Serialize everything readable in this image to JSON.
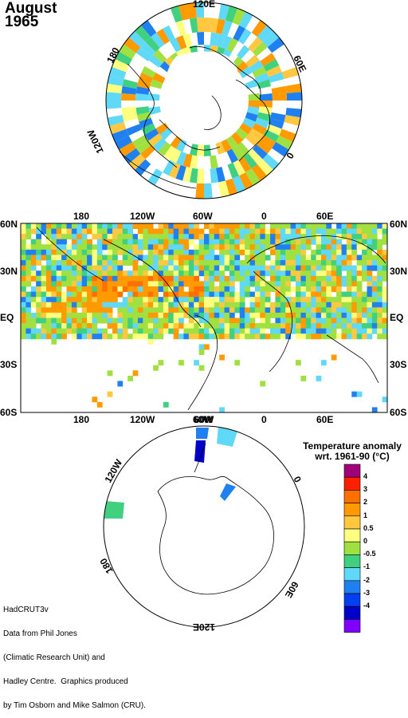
{
  "title": {
    "month": "August",
    "year": "1965"
  },
  "north_polar": {
    "labels": [
      "120E",
      "60E",
      "0",
      "120W",
      "180"
    ]
  },
  "mid_map": {
    "top_lon_labels": [
      "180",
      "120W",
      "60W",
      "0",
      "60E"
    ],
    "bottom_lon_labels": [
      "180",
      "120W",
      "60W",
      "0",
      "60E"
    ],
    "lat_labels": [
      "60N",
      "30N",
      "EQ",
      "30S",
      "60S"
    ]
  },
  "south_polar": {
    "labels": [
      "60W",
      "0",
      "60E",
      "120E",
      "180",
      "120W"
    ]
  },
  "legend": {
    "title_line1": "Temperature anomaly",
    "title_line2": "wrt. 1961-90  (°C)",
    "items": [
      {
        "label": "4",
        "color": "#a0007a"
      },
      {
        "label": "3",
        "color": "#ff2000"
      },
      {
        "label": "2",
        "color": "#ff7000"
      },
      {
        "label": "1",
        "color": "#ff9a00"
      },
      {
        "label": "0.5",
        "color": "#ffc840"
      },
      {
        "label": "0",
        "color": "#ffff80"
      },
      {
        "label": "-0.5",
        "color": "#a0e040"
      },
      {
        "label": "-1",
        "color": "#40d080"
      },
      {
        "label": "-2",
        "color": "#60d8f8"
      },
      {
        "label": "-3",
        "color": "#2080f0"
      },
      {
        "label": "-4",
        "color": "#0040f0"
      },
      {
        "label": "",
        "color": "#0000c8"
      },
      {
        "label": "",
        "color": "#8000ff"
      }
    ]
  },
  "credit": {
    "lines": [
      "HadCRUT3v",
      "Data from Phil Jones",
      "(Climatic Research Unit) and",
      "Hadley Centre.  Graphics produced",
      "by Tim Osborn and Mike Salmon (CRU)."
    ]
  },
  "colors": {
    "orange": "#ff9a00",
    "lightorange": "#ffc840",
    "yellow": "#ffff80",
    "green": "#a0e040",
    "seagreen": "#40d080",
    "cyan": "#60d8f8",
    "blue": "#2080f0",
    "darkblue": "#0040f0",
    "red": "#ff2000",
    "darkorange": "#ff7000"
  }
}
